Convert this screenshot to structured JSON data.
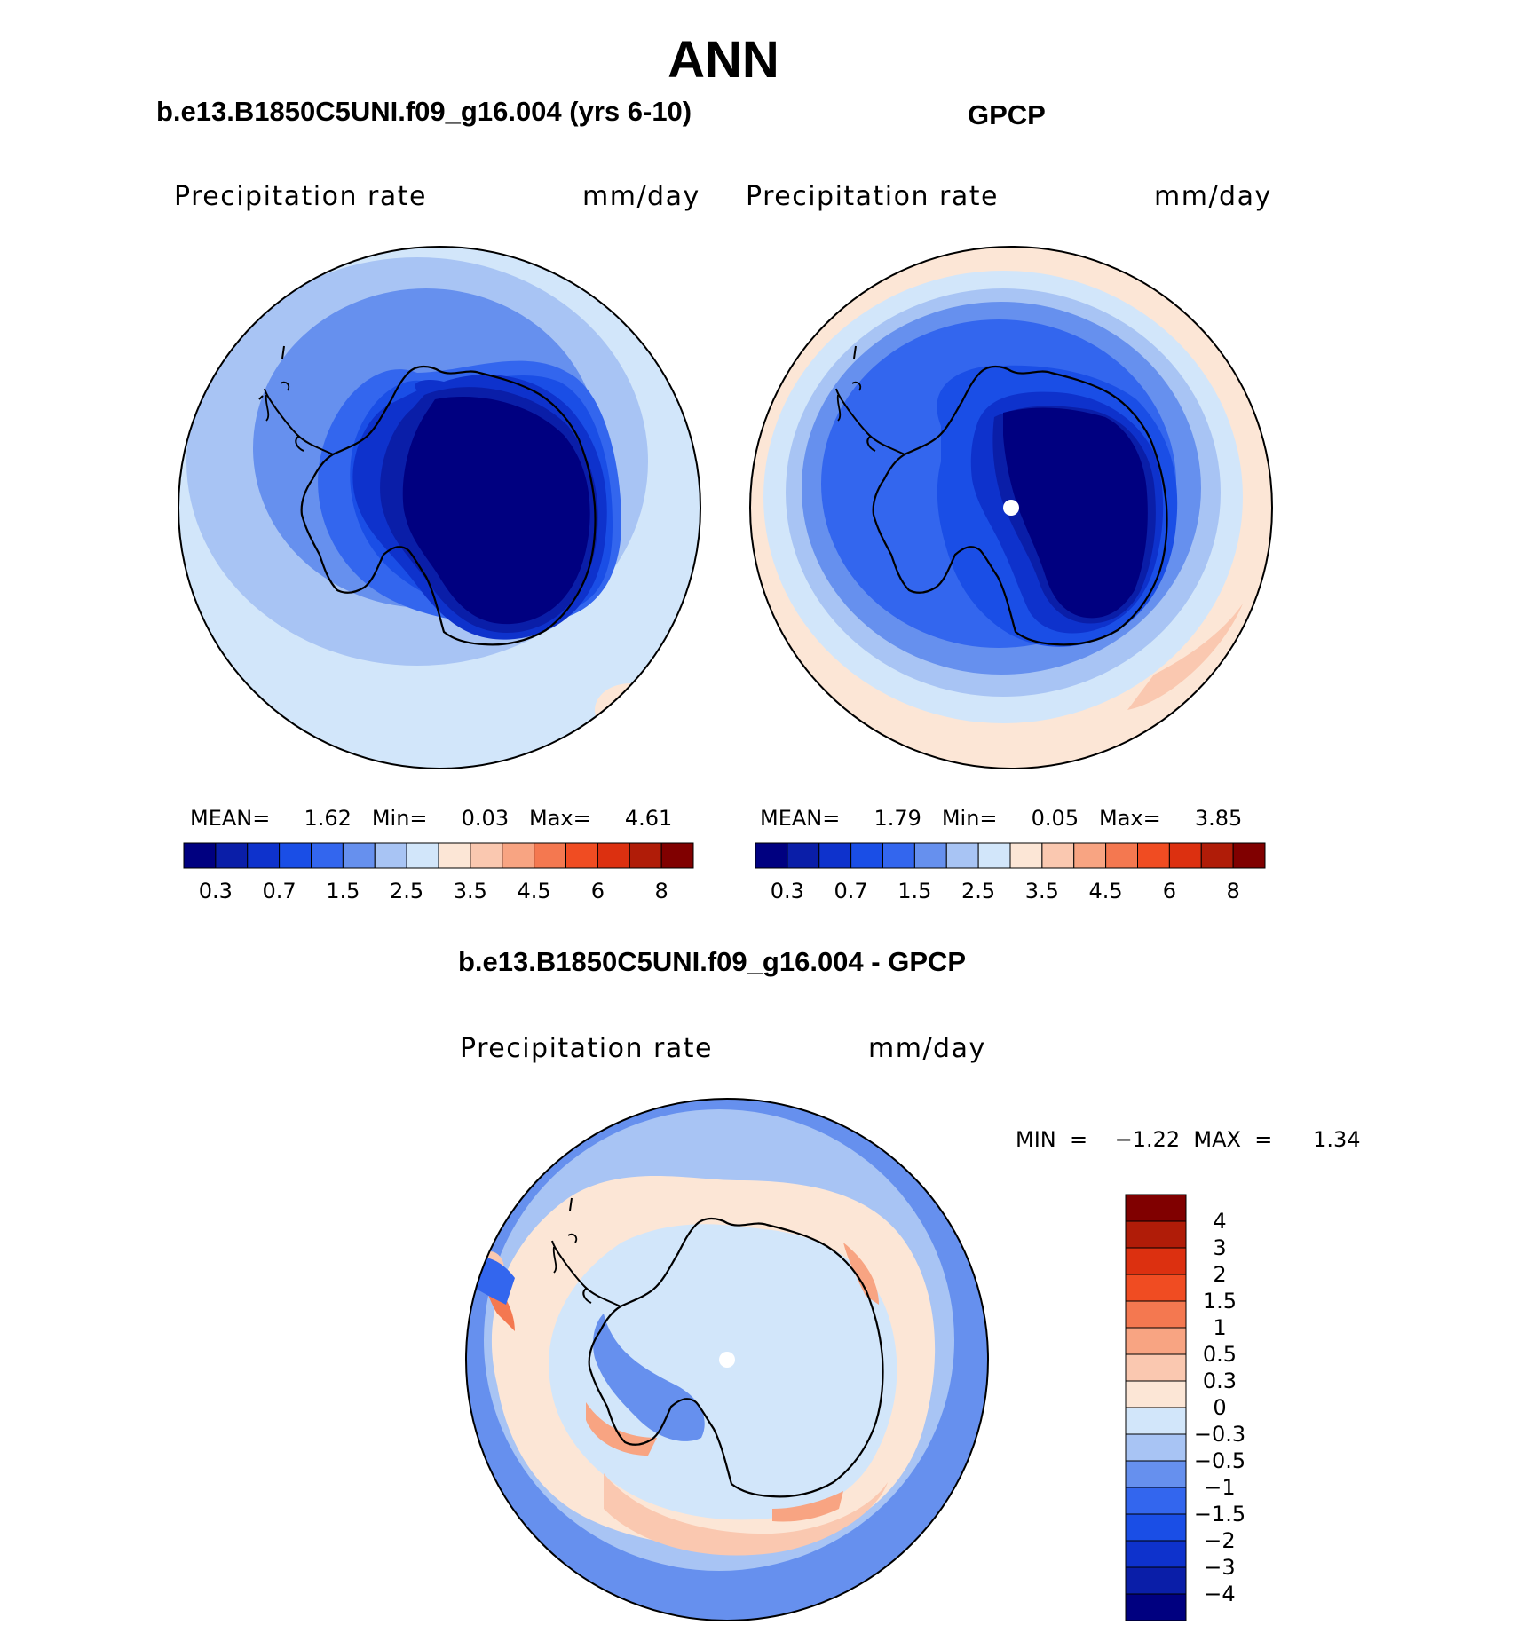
{
  "header": {
    "title": "ANN",
    "left_title": "b.e13.B1850C5UNI.f09_g16.004 (yrs 6-10)",
    "right_title": "GPCP",
    "diff_title": "b.e13.B1850C5UNI.f09_g16.004 - GPCP"
  },
  "panels": {
    "model": {
      "var_name": "Precipitation  rate",
      "units": "mm/day",
      "stats": "MEAN=     1.62   Min=     0.03   Max=     4.61"
    },
    "obs": {
      "var_name": "Precipitation  rate",
      "units": "mm/day",
      "stats": "MEAN=     1.79   Min=     0.05   Max=     3.85"
    },
    "diff": {
      "var_name": "Precipitation  rate",
      "units": "mm/day",
      "stats": "MIN  =    −1.22  MAX  =      1.34"
    }
  },
  "colors": {
    "abs_levels": [
      "#000080",
      "#0a1ea8",
      "#0e32cc",
      "#1a4ee6",
      "#3366ee",
      "#6690ee",
      "#a8c4f4",
      "#d2e6fa",
      "#fce6d6",
      "#fac8b0",
      "#f8a482",
      "#f47850",
      "#f04c22",
      "#dc3010",
      "#b01c08",
      "#800000"
    ],
    "diff_levels": [
      "#000080",
      "#0a1ea8",
      "#0e32cc",
      "#1a4ee6",
      "#3366ee",
      "#6690ee",
      "#a8c4f4",
      "#d2e6fa",
      "#fce6d6",
      "#fac8b0",
      "#f8a482",
      "#f47850",
      "#f04c22",
      "#dc3010",
      "#b01c08",
      "#800000"
    ],
    "coast": "#000000"
  },
  "chart_data": [
    {
      "type": "heatmap",
      "title": "b.e13.B1850C5UNI.f09_g16.004 (yrs 6-10)",
      "variable": "Precipitation  rate",
      "units": "mm/day",
      "projection": "south polar stereographic",
      "mean": 1.62,
      "min": 0.03,
      "max": 4.61,
      "colorbar_ticks": [
        "0.3",
        "0.7",
        "1.5",
        "2.5",
        "3.5",
        "4.5",
        "6",
        "8"
      ],
      "contour_levels": [
        0.2,
        0.3,
        0.5,
        0.7,
        1,
        1.5,
        2,
        2.5,
        3,
        3.5,
        4,
        4.5,
        5,
        6,
        7,
        8
      ]
    },
    {
      "type": "heatmap",
      "title": "GPCP",
      "variable": "Precipitation  rate",
      "units": "mm/day",
      "projection": "south polar stereographic",
      "mean": 1.79,
      "min": 0.05,
      "max": 3.85,
      "colorbar_ticks": [
        "0.3",
        "0.7",
        "1.5",
        "2.5",
        "3.5",
        "4.5",
        "6",
        "8"
      ],
      "contour_levels": [
        0.2,
        0.3,
        0.5,
        0.7,
        1,
        1.5,
        2,
        2.5,
        3,
        3.5,
        4,
        4.5,
        5,
        6,
        7,
        8
      ]
    },
    {
      "type": "heatmap",
      "title": "b.e13.B1850C5UNI.f09_g16.004 - GPCP",
      "variable": "Precipitation  rate",
      "units": "mm/day",
      "projection": "south polar stereographic",
      "min": -1.22,
      "max": 1.34,
      "colorbar_ticks": [
        "4",
        "3",
        "2",
        "1.5",
        "1",
        "0.5",
        "0.3",
        "0",
        "−0.3",
        "−0.5",
        "−1",
        "−1.5",
        "−2",
        "−3",
        "−4"
      ]
    }
  ]
}
